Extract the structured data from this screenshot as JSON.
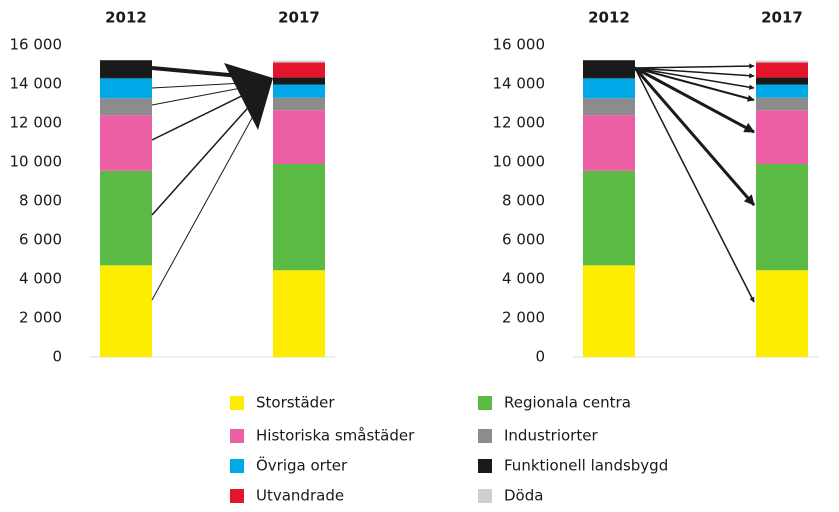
{
  "chart_data": {
    "type": "stacked_bar",
    "categories": [
      "2012",
      "2017"
    ],
    "series": [
      {
        "name": "Storstäder",
        "color": "#ffed00",
        "values": [
          4700,
          4450
        ]
      },
      {
        "name": "Regionala centra",
        "color": "#5bb946",
        "values": [
          4850,
          5450
        ]
      },
      {
        "name": "Historiska småstäder",
        "color": "#ec5fa4",
        "values": [
          2850,
          2750
        ]
      },
      {
        "name": "Industriorter",
        "color": "#8c8c8c",
        "values": [
          870,
          650
        ]
      },
      {
        "name": "Övriga orter",
        "color": "#00a8e8",
        "values": [
          1020,
          670
        ]
      },
      {
        "name": "Funktionell landsbygd",
        "color": "#1a1a1a",
        "values": [
          930,
          360
        ]
      },
      {
        "name": "Utvandrade",
        "color": "#e3152c",
        "values": [
          0,
          770
        ]
      },
      {
        "name": "Döda",
        "color": "#cfcfcf",
        "values": [
          0,
          100
        ]
      }
    ],
    "ylim": [
      0,
      16000
    ],
    "yticks": [
      0,
      {
        "value": 2000,
        "label": "2 000"
      },
      {
        "value": 4000,
        "label": "4 000"
      },
      {
        "value": 6000,
        "label": "6 000"
      },
      {
        "value": 8000,
        "label": "8 000"
      },
      {
        "value": 10000,
        "label": "10 000"
      },
      {
        "value": 12000,
        "label": "12 000"
      },
      {
        "value": 14000,
        "label": "14 000"
      },
      {
        "value": 16000,
        "label": "16 000"
      }
    ]
  }
}
